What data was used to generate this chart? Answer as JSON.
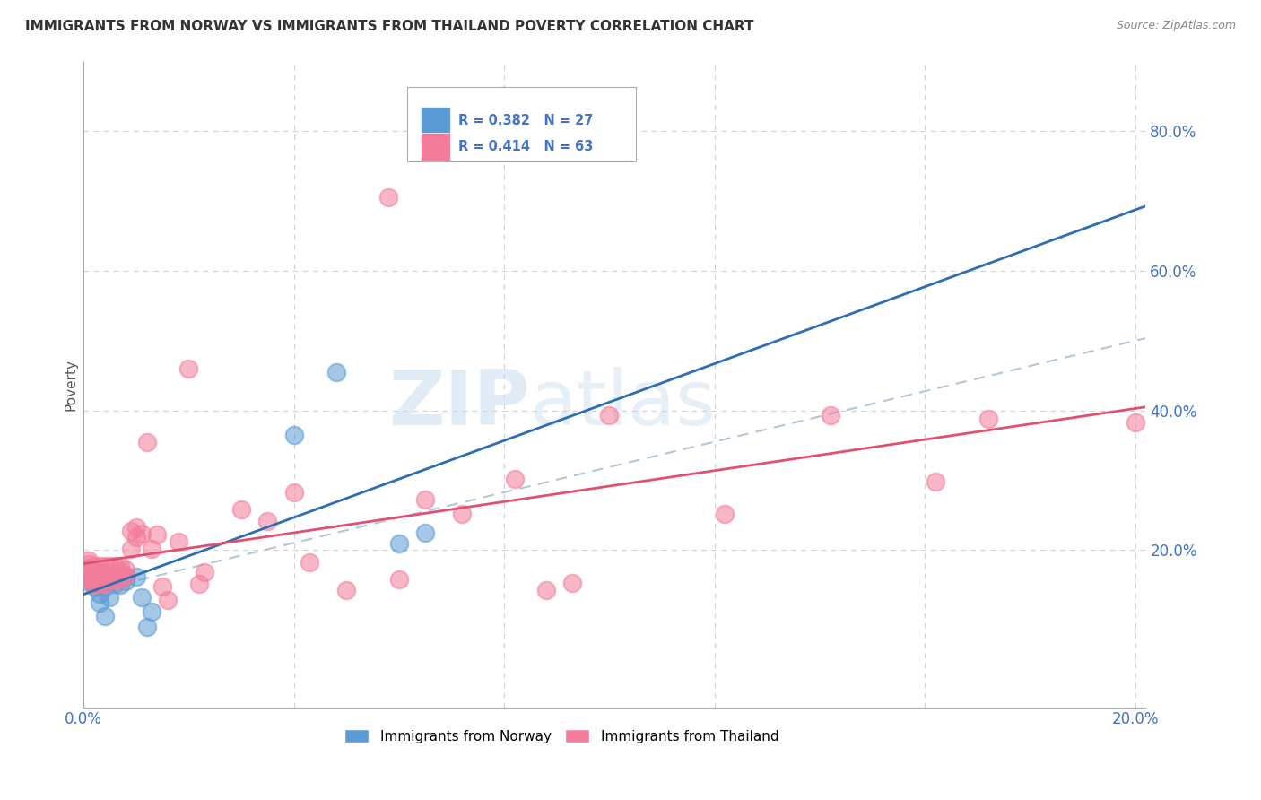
{
  "title": "IMMIGRANTS FROM NORWAY VS IMMIGRANTS FROM THAILAND POVERTY CORRELATION CHART",
  "source": "Source: ZipAtlas.com",
  "ylabel": "Poverty",
  "norway_color": "#5b9bd5",
  "thailand_color": "#f47c9a",
  "norway_R": 0.382,
  "norway_N": 27,
  "thailand_R": 0.414,
  "thailand_N": 63,
  "norway_x": [
    0.0005,
    0.001,
    0.001,
    0.0015,
    0.002,
    0.002,
    0.002,
    0.003,
    0.003,
    0.003,
    0.004,
    0.004,
    0.005,
    0.005,
    0.006,
    0.006,
    0.007,
    0.008,
    0.008,
    0.01,
    0.011,
    0.012,
    0.013,
    0.04,
    0.048,
    0.06,
    0.065
  ],
  "norway_y": [
    0.155,
    0.16,
    0.165,
    0.17,
    0.148,
    0.155,
    0.158,
    0.125,
    0.138,
    0.152,
    0.105,
    0.148,
    0.132,
    0.158,
    0.152,
    0.162,
    0.15,
    0.155,
    0.162,
    0.162,
    0.132,
    0.09,
    0.112,
    0.365,
    0.455,
    0.21,
    0.225
  ],
  "thailand_x": [
    0.0003,
    0.0005,
    0.001,
    0.001,
    0.001,
    0.001,
    0.001,
    0.001,
    0.002,
    0.002,
    0.002,
    0.002,
    0.003,
    0.003,
    0.003,
    0.003,
    0.004,
    0.004,
    0.004,
    0.004,
    0.005,
    0.005,
    0.005,
    0.006,
    0.006,
    0.006,
    0.007,
    0.007,
    0.007,
    0.008,
    0.008,
    0.009,
    0.009,
    0.01,
    0.01,
    0.011,
    0.012,
    0.013,
    0.014,
    0.015,
    0.016,
    0.018,
    0.02,
    0.022,
    0.023,
    0.03,
    0.035,
    0.04,
    0.043,
    0.05,
    0.058,
    0.06,
    0.065,
    0.072,
    0.082,
    0.088,
    0.093,
    0.1,
    0.122,
    0.142,
    0.162,
    0.172,
    0.2
  ],
  "thailand_y": [
    0.16,
    0.165,
    0.16,
    0.165,
    0.17,
    0.175,
    0.18,
    0.185,
    0.15,
    0.155,
    0.168,
    0.178,
    0.152,
    0.158,
    0.168,
    0.178,
    0.152,
    0.162,
    0.168,
    0.178,
    0.158,
    0.163,
    0.178,
    0.158,
    0.163,
    0.178,
    0.158,
    0.168,
    0.178,
    0.163,
    0.172,
    0.202,
    0.228,
    0.218,
    0.232,
    0.223,
    0.355,
    0.202,
    0.222,
    0.148,
    0.128,
    0.212,
    0.46,
    0.152,
    0.168,
    0.258,
    0.242,
    0.283,
    0.183,
    0.143,
    0.705,
    0.158,
    0.272,
    0.252,
    0.302,
    0.143,
    0.153,
    0.393,
    0.252,
    0.393,
    0.298,
    0.388,
    0.383
  ],
  "xlim": [
    0.0,
    0.202
  ],
  "ylim": [
    -0.025,
    0.9
  ],
  "ytick_vals": [
    0.2,
    0.4,
    0.6,
    0.8
  ],
  "xtick_positions": [
    0.0,
    0.04,
    0.08,
    0.12,
    0.16,
    0.2
  ],
  "watermark_zip": "ZIP",
  "watermark_atlas": "atlas",
  "background_color": "#ffffff",
  "grid_color": "#d0d0d0",
  "tick_color": "#4472c4",
  "norway_line_color": "#2e6db4",
  "thailand_line_color": "#e05070",
  "dashed_line_color": "#a0b8d0"
}
